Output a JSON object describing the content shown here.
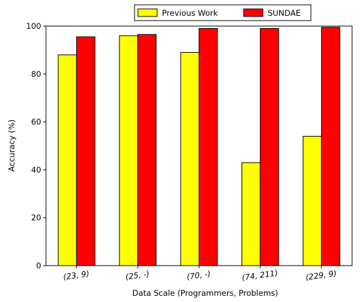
{
  "chart_data": {
    "type": "bar",
    "title": "",
    "xlabel": "Data Scale (Programmers, Problems)",
    "ylabel": "Accuracy (%)",
    "categories": [
      "(23, 9)",
      "(25, -)",
      "(70, -)",
      "(74, 211)",
      "(229, 9)"
    ],
    "series": [
      {
        "name": "Previous Work",
        "color": "#ffff00",
        "values": [
          88,
          96,
          89,
          43,
          54
        ]
      },
      {
        "name": "SUNDAE",
        "color": "#ff0000",
        "values": [
          95.5,
          96.5,
          99,
          99,
          99.5
        ]
      }
    ],
    "ylim": [
      0,
      100
    ],
    "yticks": [
      0,
      20,
      40,
      60,
      80,
      100
    ],
    "grid": false,
    "legend_position": "top-center"
  }
}
